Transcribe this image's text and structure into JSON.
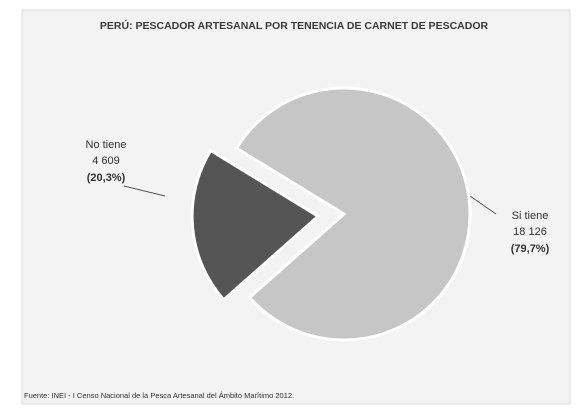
{
  "chart_data": {
    "type": "pie",
    "title": "PERÚ: PESCADOR ARTESANAL POR TENENCIA DE CARNET DE PESCADOR",
    "categories": [
      "No tiene",
      "Si tiene"
    ],
    "values": [
      4609,
      18126
    ],
    "value_labels": [
      "4 609",
      "18 126"
    ],
    "shares": [
      20.3,
      79.7
    ],
    "share_labels": [
      "(20,3%)",
      "(79,7%)"
    ],
    "colors": [
      "#555555",
      "#c6c6c6"
    ],
    "source": "Fuente: INEI - I Censo Nacional de la Pesca Artesanal del Ámbito Marítimo 2012."
  }
}
